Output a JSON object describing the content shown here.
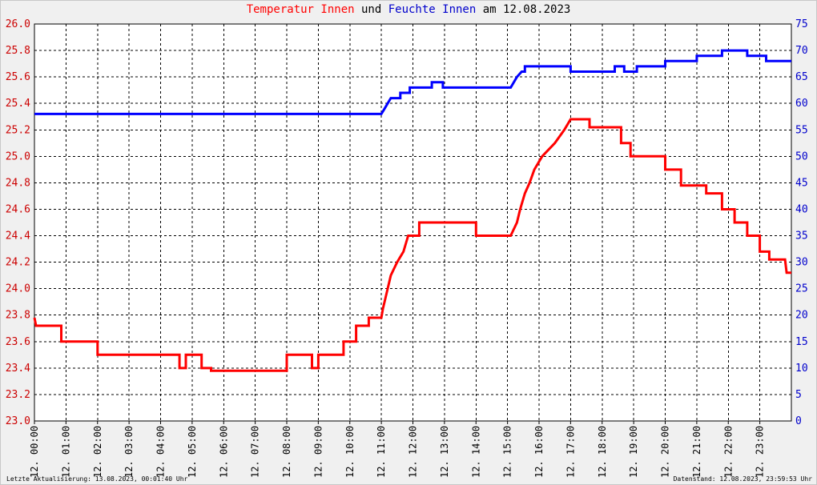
{
  "title": {
    "part1": "Temperatur Innen",
    "part2": "und",
    "part3": "Feuchte Innen",
    "part4": "am 12.08.2023"
  },
  "footer": {
    "left": "Letzte Aktualisierung: 13.08.2023, 00:01:40 Uhr",
    "right": "Datenstand: 12.08.2023, 23:59:53 Uhr"
  },
  "colors": {
    "temperature": "#ff0000",
    "humidity": "#0000ff",
    "left_axis_text": "#cc0000",
    "right_axis_text": "#0000cc",
    "grid": "#000000",
    "background": "#f0f0f0",
    "plot_background": "#ffffff"
  },
  "chart_data": {
    "type": "line",
    "title": "Temperatur Innen und Feuchte Innen am 12.08.2023",
    "grid": true,
    "y_left": {
      "min": 23.0,
      "max": 26.0,
      "step": 0.2,
      "tick_labels": [
        "23.0",
        "23.2",
        "23.4",
        "23.6",
        "23.8",
        "24.0",
        "24.2",
        "24.4",
        "24.6",
        "24.8",
        "25.0",
        "25.2",
        "25.4",
        "25.6",
        "25.8",
        "26.0"
      ]
    },
    "y_right": {
      "min": 0,
      "max": 75,
      "step": 5,
      "tick_labels": [
        "0",
        "5",
        "10",
        "15",
        "20",
        "25",
        "30",
        "35",
        "40",
        "45",
        "50",
        "55",
        "60",
        "65",
        "70",
        "75"
      ]
    },
    "x_range_hours": [
      0,
      24
    ],
    "x_tick_labels": [
      "12. 00:00",
      "12. 01:00",
      "12. 02:00",
      "12. 03:00",
      "12. 04:00",
      "12. 05:00",
      "12. 06:00",
      "12. 07:00",
      "12. 08:00",
      "12. 09:00",
      "12. 10:00",
      "12. 11:00",
      "12. 12:00",
      "12. 13:00",
      "12. 14:00",
      "12. 15:00",
      "12. 16:00",
      "12. 17:00",
      "12. 18:00",
      "12. 19:00",
      "12. 20:00",
      "12. 21:00",
      "12. 22:00",
      "12. 23:00"
    ],
    "series": [
      {
        "name": "Temperatur Innen",
        "axis": "left",
        "points": [
          [
            0.0,
            23.78
          ],
          [
            0.05,
            23.72
          ],
          [
            0.85,
            23.72
          ],
          [
            0.85,
            23.6
          ],
          [
            1.1,
            23.6
          ],
          [
            1.2,
            23.6
          ],
          [
            2.0,
            23.6
          ],
          [
            2.0,
            23.5
          ],
          [
            2.6,
            23.5
          ],
          [
            4.6,
            23.5
          ],
          [
            4.6,
            23.4
          ],
          [
            4.8,
            23.4
          ],
          [
            4.8,
            23.5
          ],
          [
            5.3,
            23.5
          ],
          [
            5.3,
            23.4
          ],
          [
            5.6,
            23.4
          ],
          [
            5.6,
            23.38
          ],
          [
            8.0,
            23.38
          ],
          [
            8.0,
            23.4
          ],
          [
            8.0,
            23.5
          ],
          [
            8.8,
            23.5
          ],
          [
            8.8,
            23.4
          ],
          [
            9.0,
            23.4
          ],
          [
            9.0,
            23.5
          ],
          [
            9.8,
            23.5
          ],
          [
            9.8,
            23.6
          ],
          [
            10.2,
            23.6
          ],
          [
            10.2,
            23.72
          ],
          [
            10.6,
            23.72
          ],
          [
            10.6,
            23.78
          ],
          [
            11.0,
            23.78
          ],
          [
            11.05,
            23.85
          ],
          [
            11.1,
            23.9
          ],
          [
            11.2,
            24.0
          ],
          [
            11.3,
            24.1
          ],
          [
            11.5,
            24.2
          ],
          [
            11.7,
            24.28
          ],
          [
            11.85,
            24.4
          ],
          [
            12.2,
            24.4
          ],
          [
            12.2,
            24.5
          ],
          [
            13.5,
            24.5
          ],
          [
            14.0,
            24.5
          ],
          [
            14.0,
            24.4
          ],
          [
            15.1,
            24.4
          ],
          [
            15.3,
            24.5
          ],
          [
            15.4,
            24.6
          ],
          [
            15.55,
            24.72
          ],
          [
            15.7,
            24.8
          ],
          [
            15.85,
            24.9
          ],
          [
            16.1,
            25.0
          ],
          [
            16.5,
            25.1
          ],
          [
            16.8,
            25.2
          ],
          [
            17.0,
            25.28
          ],
          [
            17.6,
            25.28
          ],
          [
            17.6,
            25.22
          ],
          [
            18.6,
            25.22
          ],
          [
            18.6,
            25.1
          ],
          [
            18.9,
            25.1
          ],
          [
            18.9,
            25.0
          ],
          [
            20.0,
            25.0
          ],
          [
            20.0,
            24.9
          ],
          [
            20.5,
            24.9
          ],
          [
            20.5,
            24.78
          ],
          [
            21.3,
            24.78
          ],
          [
            21.3,
            24.72
          ],
          [
            21.8,
            24.72
          ],
          [
            21.8,
            24.6
          ],
          [
            22.2,
            24.6
          ],
          [
            22.2,
            24.5
          ],
          [
            22.6,
            24.5
          ],
          [
            22.6,
            24.4
          ],
          [
            23.0,
            24.4
          ],
          [
            23.0,
            24.28
          ],
          [
            23.3,
            24.28
          ],
          [
            23.3,
            24.22
          ],
          [
            23.8,
            24.22
          ],
          [
            23.85,
            24.12
          ],
          [
            24.0,
            24.12
          ]
        ]
      },
      {
        "name": "Feuchte Innen",
        "axis": "right",
        "points": [
          [
            0.0,
            58
          ],
          [
            11.0,
            58
          ],
          [
            11.1,
            59
          ],
          [
            11.2,
            60
          ],
          [
            11.3,
            61
          ],
          [
            11.6,
            61
          ],
          [
            11.6,
            62
          ],
          [
            11.9,
            62
          ],
          [
            11.9,
            63
          ],
          [
            12.6,
            63
          ],
          [
            12.6,
            64
          ],
          [
            12.95,
            64
          ],
          [
            12.95,
            63
          ],
          [
            15.1,
            63
          ],
          [
            15.2,
            64
          ],
          [
            15.3,
            65
          ],
          [
            15.45,
            66
          ],
          [
            15.55,
            66
          ],
          [
            15.55,
            67
          ],
          [
            17.0,
            67
          ],
          [
            17.0,
            66
          ],
          [
            18.4,
            66
          ],
          [
            18.4,
            67
          ],
          [
            18.7,
            67
          ],
          [
            18.7,
            66
          ],
          [
            19.1,
            66
          ],
          [
            19.1,
            67
          ],
          [
            20.0,
            67
          ],
          [
            20.0,
            68
          ],
          [
            21.0,
            68
          ],
          [
            21.0,
            69
          ],
          [
            21.8,
            69
          ],
          [
            21.8,
            70
          ],
          [
            22.6,
            70
          ],
          [
            22.6,
            69
          ],
          [
            23.2,
            69
          ],
          [
            23.2,
            68
          ],
          [
            24.0,
            68
          ]
        ]
      }
    ]
  }
}
